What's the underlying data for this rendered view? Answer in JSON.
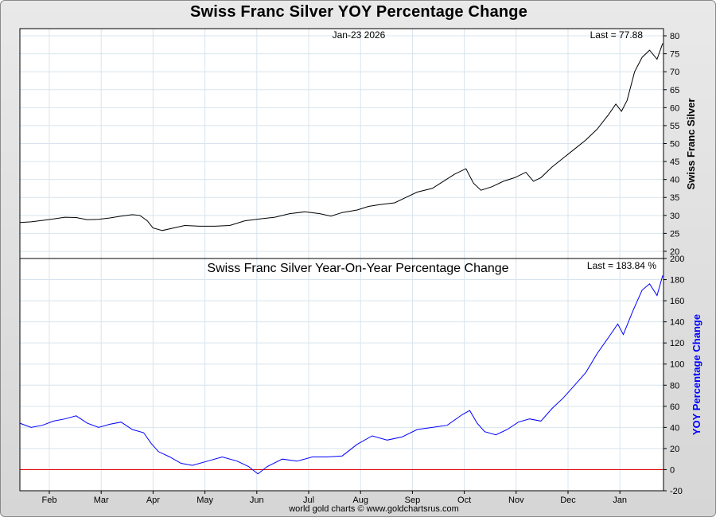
{
  "title": "Swiss Franc Silver YOY Percentage Change",
  "footer": "world gold charts © www.goldchartsrus.com",
  "colors": {
    "price_line": "#000000",
    "yoy_line": "#0000ff",
    "zero_line": "#dd0000",
    "grid": "#d8e4ee",
    "yoy_label": "#0000ff"
  },
  "chart_data": [
    {
      "type": "line",
      "title": "",
      "date_label": "Jan-23  2026",
      "last_label": "Last = 77.88",
      "ylabel": "Swiss Franc Silver",
      "ylim": [
        18,
        82
      ],
      "yticks": [
        20,
        25,
        30,
        35,
        40,
        45,
        50,
        55,
        60,
        65,
        70,
        75,
        80
      ],
      "x_months": [
        "Feb",
        "Mar",
        "Apr",
        "May",
        "Jun",
        "Jul",
        "Aug",
        "Sep",
        "Oct",
        "Nov",
        "Dec",
        "Jan"
      ],
      "series": [
        {
          "name": "Swiss Franc Silver",
          "points": [
            [
              0.0,
              28.0
            ],
            [
              0.3,
              28.2
            ],
            [
              0.6,
              28.6
            ],
            [
              0.9,
              29.0
            ],
            [
              1.2,
              29.5
            ],
            [
              1.5,
              29.4
            ],
            [
              1.8,
              28.8
            ],
            [
              2.1,
              28.9
            ],
            [
              2.4,
              29.3
            ],
            [
              2.7,
              29.8
            ],
            [
              3.0,
              30.2
            ],
            [
              3.2,
              30.0
            ],
            [
              3.4,
              28.5
            ],
            [
              3.55,
              26.5
            ],
            [
              3.8,
              25.8
            ],
            [
              4.1,
              26.5
            ],
            [
              4.4,
              27.2
            ],
            [
              4.8,
              27.0
            ],
            [
              5.2,
              27.0
            ],
            [
              5.6,
              27.2
            ],
            [
              6.0,
              28.5
            ],
            [
              6.4,
              29.0
            ],
            [
              6.8,
              29.5
            ],
            [
              7.2,
              30.5
            ],
            [
              7.6,
              31.0
            ],
            [
              8.0,
              30.5
            ],
            [
              8.3,
              29.8
            ],
            [
              8.6,
              30.8
            ],
            [
              9.0,
              31.5
            ],
            [
              9.3,
              32.5
            ],
            [
              9.6,
              33.0
            ],
            [
              10.0,
              33.5
            ],
            [
              10.3,
              35.0
            ],
            [
              10.6,
              36.5
            ],
            [
              11.0,
              37.5
            ],
            [
              11.3,
              39.5
            ],
            [
              11.6,
              41.5
            ],
            [
              11.9,
              43.0
            ],
            [
              12.1,
              39.0
            ],
            [
              12.3,
              37.0
            ],
            [
              12.6,
              38.0
            ],
            [
              12.9,
              39.5
            ],
            [
              13.2,
              40.5
            ],
            [
              13.5,
              42.0
            ],
            [
              13.7,
              39.5
            ],
            [
              13.9,
              40.5
            ],
            [
              14.2,
              43.5
            ],
            [
              14.5,
              46.0
            ],
            [
              14.8,
              48.5
            ],
            [
              15.1,
              51.0
            ],
            [
              15.4,
              54.0
            ],
            [
              15.7,
              58.0
            ],
            [
              15.9,
              61.0
            ],
            [
              16.05,
              59.0
            ],
            [
              16.2,
              62.0
            ],
            [
              16.4,
              70.0
            ],
            [
              16.6,
              74.0
            ],
            [
              16.8,
              76.0
            ],
            [
              17.0,
              73.5
            ],
            [
              17.15,
              77.88
            ]
          ]
        }
      ]
    },
    {
      "type": "line",
      "title": "Swiss Franc Silver Year-On-Year Percentage Change",
      "last_label": "Last = 183.84 %",
      "ylabel": "YOY Percentage Change",
      "ylim": [
        -20,
        200
      ],
      "yticks": [
        -20,
        0,
        20,
        40,
        60,
        80,
        100,
        120,
        140,
        160,
        180,
        200
      ],
      "reference_line": 0,
      "x_months": [
        "Feb",
        "Mar",
        "Apr",
        "May",
        "Jun",
        "Jul",
        "Aug",
        "Sep",
        "Oct",
        "Nov",
        "Dec",
        "Jan"
      ],
      "series": [
        {
          "name": "YOY Percentage Change",
          "points": [
            [
              0.0,
              44
            ],
            [
              0.3,
              40
            ],
            [
              0.6,
              42
            ],
            [
              0.9,
              46
            ],
            [
              1.2,
              48
            ],
            [
              1.5,
              51
            ],
            [
              1.8,
              44
            ],
            [
              2.1,
              40
            ],
            [
              2.4,
              43
            ],
            [
              2.7,
              45
            ],
            [
              3.0,
              38
            ],
            [
              3.3,
              35
            ],
            [
              3.5,
              25
            ],
            [
              3.7,
              17
            ],
            [
              4.0,
              12
            ],
            [
              4.3,
              6
            ],
            [
              4.6,
              4
            ],
            [
              5.0,
              8
            ],
            [
              5.4,
              12
            ],
            [
              5.8,
              8
            ],
            [
              6.1,
              3
            ],
            [
              6.35,
              -4
            ],
            [
              6.6,
              3
            ],
            [
              7.0,
              10
            ],
            [
              7.4,
              8
            ],
            [
              7.8,
              12
            ],
            [
              8.2,
              12
            ],
            [
              8.6,
              13
            ],
            [
              9.0,
              24
            ],
            [
              9.4,
              32
            ],
            [
              9.8,
              28
            ],
            [
              10.2,
              31
            ],
            [
              10.6,
              38
            ],
            [
              11.0,
              40
            ],
            [
              11.4,
              42
            ],
            [
              11.8,
              52
            ],
            [
              12.0,
              56
            ],
            [
              12.2,
              44
            ],
            [
              12.4,
              36
            ],
            [
              12.7,
              33
            ],
            [
              13.0,
              38
            ],
            [
              13.3,
              45
            ],
            [
              13.6,
              48
            ],
            [
              13.9,
              46
            ],
            [
              14.2,
              58
            ],
            [
              14.5,
              68
            ],
            [
              14.8,
              80
            ],
            [
              15.1,
              92
            ],
            [
              15.4,
              110
            ],
            [
              15.7,
              125
            ],
            [
              15.95,
              138
            ],
            [
              16.1,
              128
            ],
            [
              16.35,
              150
            ],
            [
              16.6,
              170
            ],
            [
              16.8,
              176
            ],
            [
              17.0,
              165
            ],
            [
              17.15,
              183.84
            ]
          ]
        }
      ]
    }
  ]
}
